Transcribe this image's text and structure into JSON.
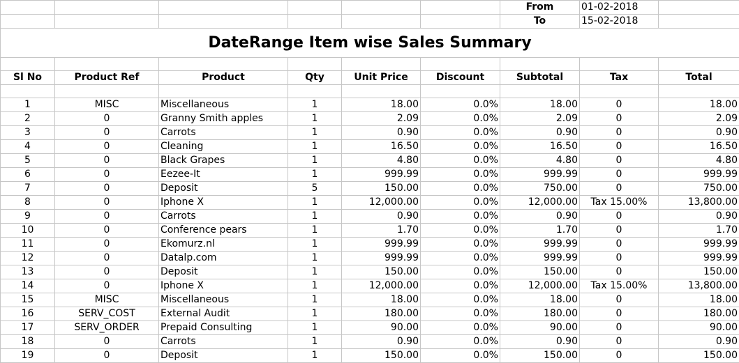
{
  "report": {
    "from_label": "From",
    "from_value": "01-02-2018",
    "to_label": "To",
    "to_value": "15-02-2018",
    "title": "DateRange Item wise Sales Summary"
  },
  "columns": [
    "Sl No",
    "Product Ref",
    "Product",
    "Qty",
    "Unit Price",
    "Discount",
    "Subtotal",
    "Tax",
    "Total"
  ],
  "rows": [
    {
      "sl": "1",
      "ref": "MISC",
      "product": "Miscellaneous",
      "qty": "1",
      "unit_price": "18.00",
      "discount": "0.0%",
      "subtotal": "18.00",
      "tax": "0",
      "total": "18.00"
    },
    {
      "sl": "2",
      "ref": "0",
      "product": "Granny Smith apples",
      "qty": "1",
      "unit_price": "2.09",
      "discount": "0.0%",
      "subtotal": "2.09",
      "tax": "0",
      "total": "2.09"
    },
    {
      "sl": "3",
      "ref": "0",
      "product": "Carrots",
      "qty": "1",
      "unit_price": "0.90",
      "discount": "0.0%",
      "subtotal": "0.90",
      "tax": "0",
      "total": "0.90"
    },
    {
      "sl": "4",
      "ref": "0",
      "product": "Cleaning",
      "qty": "1",
      "unit_price": "16.50",
      "discount": "0.0%",
      "subtotal": "16.50",
      "tax": "0",
      "total": "16.50"
    },
    {
      "sl": "5",
      "ref": "0",
      "product": "Black Grapes",
      "qty": "1",
      "unit_price": "4.80",
      "discount": "0.0%",
      "subtotal": "4.80",
      "tax": "0",
      "total": "4.80"
    },
    {
      "sl": "6",
      "ref": "0",
      "product": "Eezee-It",
      "qty": "1",
      "unit_price": "999.99",
      "discount": "0.0%",
      "subtotal": "999.99",
      "tax": "0",
      "total": "999.99"
    },
    {
      "sl": "7",
      "ref": "0",
      "product": "Deposit",
      "qty": "5",
      "unit_price": "150.00",
      "discount": "0.0%",
      "subtotal": "750.00",
      "tax": "0",
      "total": "750.00"
    },
    {
      "sl": "8",
      "ref": "0",
      "product": "Iphone X",
      "qty": "1",
      "unit_price": "12,000.00",
      "discount": "0.0%",
      "subtotal": "12,000.00",
      "tax": "Tax 15.00%",
      "total": "13,800.00"
    },
    {
      "sl": "9",
      "ref": "0",
      "product": "Carrots",
      "qty": "1",
      "unit_price": "0.90",
      "discount": "0.0%",
      "subtotal": "0.90",
      "tax": "0",
      "total": "0.90"
    },
    {
      "sl": "10",
      "ref": "0",
      "product": "Conference pears",
      "qty": "1",
      "unit_price": "1.70",
      "discount": "0.0%",
      "subtotal": "1.70",
      "tax": "0",
      "total": "1.70"
    },
    {
      "sl": "11",
      "ref": "0",
      "product": "Ekomurz.nl",
      "qty": "1",
      "unit_price": "999.99",
      "discount": "0.0%",
      "subtotal": "999.99",
      "tax": "0",
      "total": "999.99"
    },
    {
      "sl": "12",
      "ref": "0",
      "product": "Datalp.com",
      "qty": "1",
      "unit_price": "999.99",
      "discount": "0.0%",
      "subtotal": "999.99",
      "tax": "0",
      "total": "999.99"
    },
    {
      "sl": "13",
      "ref": "0",
      "product": "Deposit",
      "qty": "1",
      "unit_price": "150.00",
      "discount": "0.0%",
      "subtotal": "150.00",
      "tax": "0",
      "total": "150.00"
    },
    {
      "sl": "14",
      "ref": "0",
      "product": "Iphone X",
      "qty": "1",
      "unit_price": "12,000.00",
      "discount": "0.0%",
      "subtotal": "12,000.00",
      "tax": "Tax 15.00%",
      "total": "13,800.00"
    },
    {
      "sl": "15",
      "ref": "MISC",
      "product": "Miscellaneous",
      "qty": "1",
      "unit_price": "18.00",
      "discount": "0.0%",
      "subtotal": "18.00",
      "tax": "0",
      "total": "18.00"
    },
    {
      "sl": "16",
      "ref": "SERV_COST",
      "product": "External Audit",
      "qty": "1",
      "unit_price": "180.00",
      "discount": "0.0%",
      "subtotal": "180.00",
      "tax": "0",
      "total": "180.00"
    },
    {
      "sl": "17",
      "ref": "SERV_ORDER",
      "product": "Prepaid Consulting",
      "qty": "1",
      "unit_price": "90.00",
      "discount": "0.0%",
      "subtotal": "90.00",
      "tax": "0",
      "total": "90.00"
    },
    {
      "sl": "18",
      "ref": "0",
      "product": "Carrots",
      "qty": "1",
      "unit_price": "0.90",
      "discount": "0.0%",
      "subtotal": "0.90",
      "tax": "0",
      "total": "0.90"
    },
    {
      "sl": "19",
      "ref": "0",
      "product": "Deposit",
      "qty": "1",
      "unit_price": "150.00",
      "discount": "0.0%",
      "subtotal": "150.00",
      "tax": "0",
      "total": "150.00"
    }
  ]
}
